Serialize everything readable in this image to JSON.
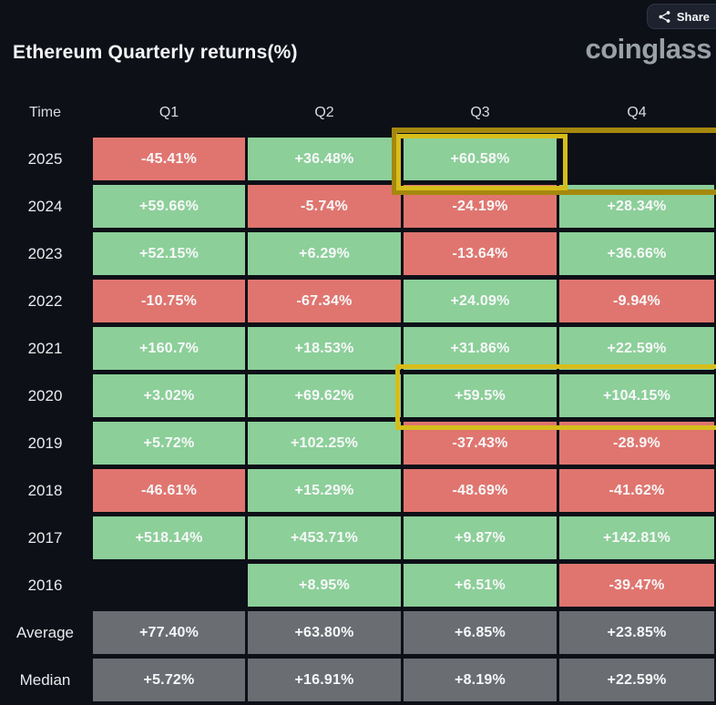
{
  "header": {
    "title": "Ethereum Quarterly returns(%)",
    "logo_text": "coinglass",
    "share_button": "Share"
  },
  "table": {
    "columns": [
      "Time",
      "Q1",
      "Q2",
      "Q3",
      "Q4"
    ],
    "rows": [
      {
        "label": "2025",
        "cells": [
          {
            "text": "-45.41%",
            "type": "negative"
          },
          {
            "text": "+36.48%",
            "type": "positive"
          },
          {
            "text": "+60.58%",
            "type": "positive"
          },
          {
            "text": "",
            "type": "empty"
          }
        ]
      },
      {
        "label": "2024",
        "cells": [
          {
            "text": "+59.66%",
            "type": "positive"
          },
          {
            "text": "-5.74%",
            "type": "negative"
          },
          {
            "text": "-24.19%",
            "type": "negative"
          },
          {
            "text": "+28.34%",
            "type": "positive"
          }
        ]
      },
      {
        "label": "2023",
        "cells": [
          {
            "text": "+52.15%",
            "type": "positive"
          },
          {
            "text": "+6.29%",
            "type": "positive"
          },
          {
            "text": "-13.64%",
            "type": "negative"
          },
          {
            "text": "+36.66%",
            "type": "positive"
          }
        ]
      },
      {
        "label": "2022",
        "cells": [
          {
            "text": "-10.75%",
            "type": "negative"
          },
          {
            "text": "-67.34%",
            "type": "negative"
          },
          {
            "text": "+24.09%",
            "type": "positive"
          },
          {
            "text": "-9.94%",
            "type": "negative"
          }
        ]
      },
      {
        "label": "2021",
        "cells": [
          {
            "text": "+160.7%",
            "type": "positive"
          },
          {
            "text": "+18.53%",
            "type": "positive"
          },
          {
            "text": "+31.86%",
            "type": "positive"
          },
          {
            "text": "+22.59%",
            "type": "positive"
          }
        ]
      },
      {
        "label": "2020",
        "cells": [
          {
            "text": "+3.02%",
            "type": "positive"
          },
          {
            "text": "+69.62%",
            "type": "positive"
          },
          {
            "text": "+59.5%",
            "type": "positive"
          },
          {
            "text": "+104.15%",
            "type": "positive"
          }
        ]
      },
      {
        "label": "2019",
        "cells": [
          {
            "text": "+5.72%",
            "type": "positive"
          },
          {
            "text": "+102.25%",
            "type": "positive"
          },
          {
            "text": "-37.43%",
            "type": "negative"
          },
          {
            "text": "-28.9%",
            "type": "negative"
          }
        ]
      },
      {
        "label": "2018",
        "cells": [
          {
            "text": "-46.61%",
            "type": "negative"
          },
          {
            "text": "+15.29%",
            "type": "positive"
          },
          {
            "text": "-48.69%",
            "type": "negative"
          },
          {
            "text": "-41.62%",
            "type": "negative"
          }
        ]
      },
      {
        "label": "2017",
        "cells": [
          {
            "text": "+518.14%",
            "type": "positive"
          },
          {
            "text": "+453.71%",
            "type": "positive"
          },
          {
            "text": "+9.87%",
            "type": "positive"
          },
          {
            "text": "+142.81%",
            "type": "positive"
          }
        ]
      },
      {
        "label": "2016",
        "cells": [
          {
            "text": "",
            "type": "empty"
          },
          {
            "text": "+8.95%",
            "type": "positive"
          },
          {
            "text": "+6.51%",
            "type": "positive"
          },
          {
            "text": "-39.47%",
            "type": "negative"
          }
        ]
      },
      {
        "label": "Average",
        "cells": [
          {
            "text": "+77.40%",
            "type": "summary"
          },
          {
            "text": "+63.80%",
            "type": "summary"
          },
          {
            "text": "+6.85%",
            "type": "summary"
          },
          {
            "text": "+23.85%",
            "type": "summary"
          }
        ]
      },
      {
        "label": "Median",
        "cells": [
          {
            "text": "+5.72%",
            "type": "summary"
          },
          {
            "text": "+16.91%",
            "type": "summary"
          },
          {
            "text": "+8.19%",
            "type": "summary"
          },
          {
            "text": "+22.59%",
            "type": "summary"
          }
        ]
      }
    ]
  },
  "colors": {
    "background": "#0d1017",
    "positive": "#8ccf99",
    "negative": "#e0756f",
    "summary": "#6a6d72",
    "cell_text": "#f7f8f9",
    "highlight_outer": "#a5880e",
    "highlight_inner": "#d6bd1a",
    "logo": "#9aa0a8"
  },
  "chart_data": {
    "type": "heatmap",
    "title": "Ethereum Quarterly returns(%)",
    "columns": [
      "Q1",
      "Q2",
      "Q3",
      "Q4"
    ],
    "years": [
      2025,
      2024,
      2023,
      2022,
      2021,
      2020,
      2019,
      2018,
      2017,
      2016
    ],
    "values": [
      [
        -45.41,
        36.48,
        60.58,
        null
      ],
      [
        59.66,
        -5.74,
        -24.19,
        28.34
      ],
      [
        52.15,
        6.29,
        -13.64,
        36.66
      ],
      [
        -10.75,
        -67.34,
        24.09,
        -9.94
      ],
      [
        160.7,
        18.53,
        31.86,
        22.59
      ],
      [
        3.02,
        69.62,
        59.5,
        104.15
      ],
      [
        5.72,
        102.25,
        -37.43,
        -28.9
      ],
      [
        -46.61,
        15.29,
        -48.69,
        -41.62
      ],
      [
        518.14,
        453.71,
        9.87,
        142.81
      ],
      [
        null,
        8.95,
        6.51,
        -39.47
      ]
    ],
    "average": [
      77.4,
      63.8,
      6.85,
      23.85
    ],
    "median": [
      5.72,
      16.91,
      8.19,
      22.59
    ],
    "units": "percent",
    "color_rule": "positive=green, negative=red, summary rows=gray",
    "highlighted_cells": [
      "2025-Q3",
      "2025-Q4",
      "2020-Q3",
      "2020-Q4"
    ]
  }
}
